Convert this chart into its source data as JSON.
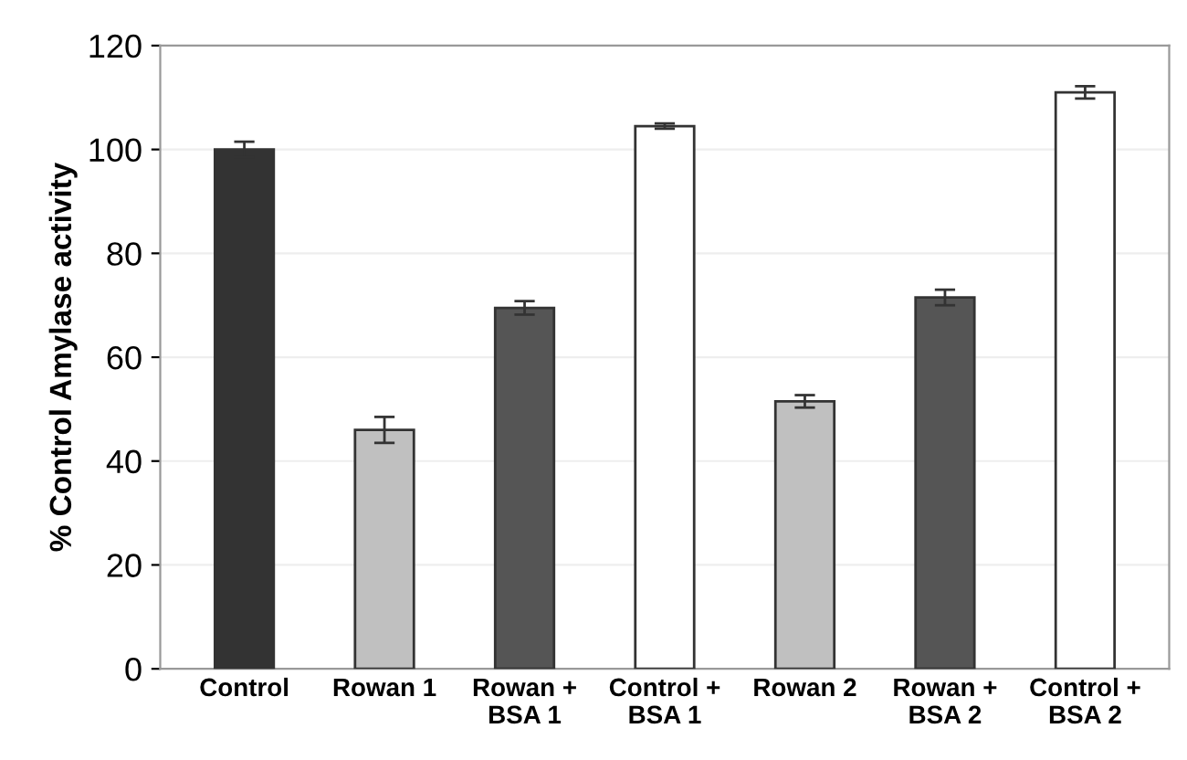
{
  "chart_data": {
    "type": "bar",
    "ylabel": "% Control Amylase activity",
    "categories": [
      "Control",
      "Rowan 1",
      "Rowan +\nBSA 1",
      "Control +\nBSA 1",
      "Rowan 2",
      "Rowan +\nBSA 2",
      "Control +\nBSA 2"
    ],
    "values": [
      100,
      46,
      69.5,
      104.5,
      51.5,
      71.5,
      111
    ],
    "errors": [
      1.5,
      2.5,
      1.3,
      0.5,
      1.2,
      1.5,
      1.2
    ],
    "colors": [
      "#333333",
      "#c0c0c0",
      "#555555",
      "#ffffff",
      "#c0c0c0",
      "#555555",
      "#ffffff"
    ],
    "ylim": [
      0,
      120
    ],
    "yticks": [
      0,
      20,
      40,
      60,
      80,
      100,
      120
    ],
    "grid": "y"
  }
}
